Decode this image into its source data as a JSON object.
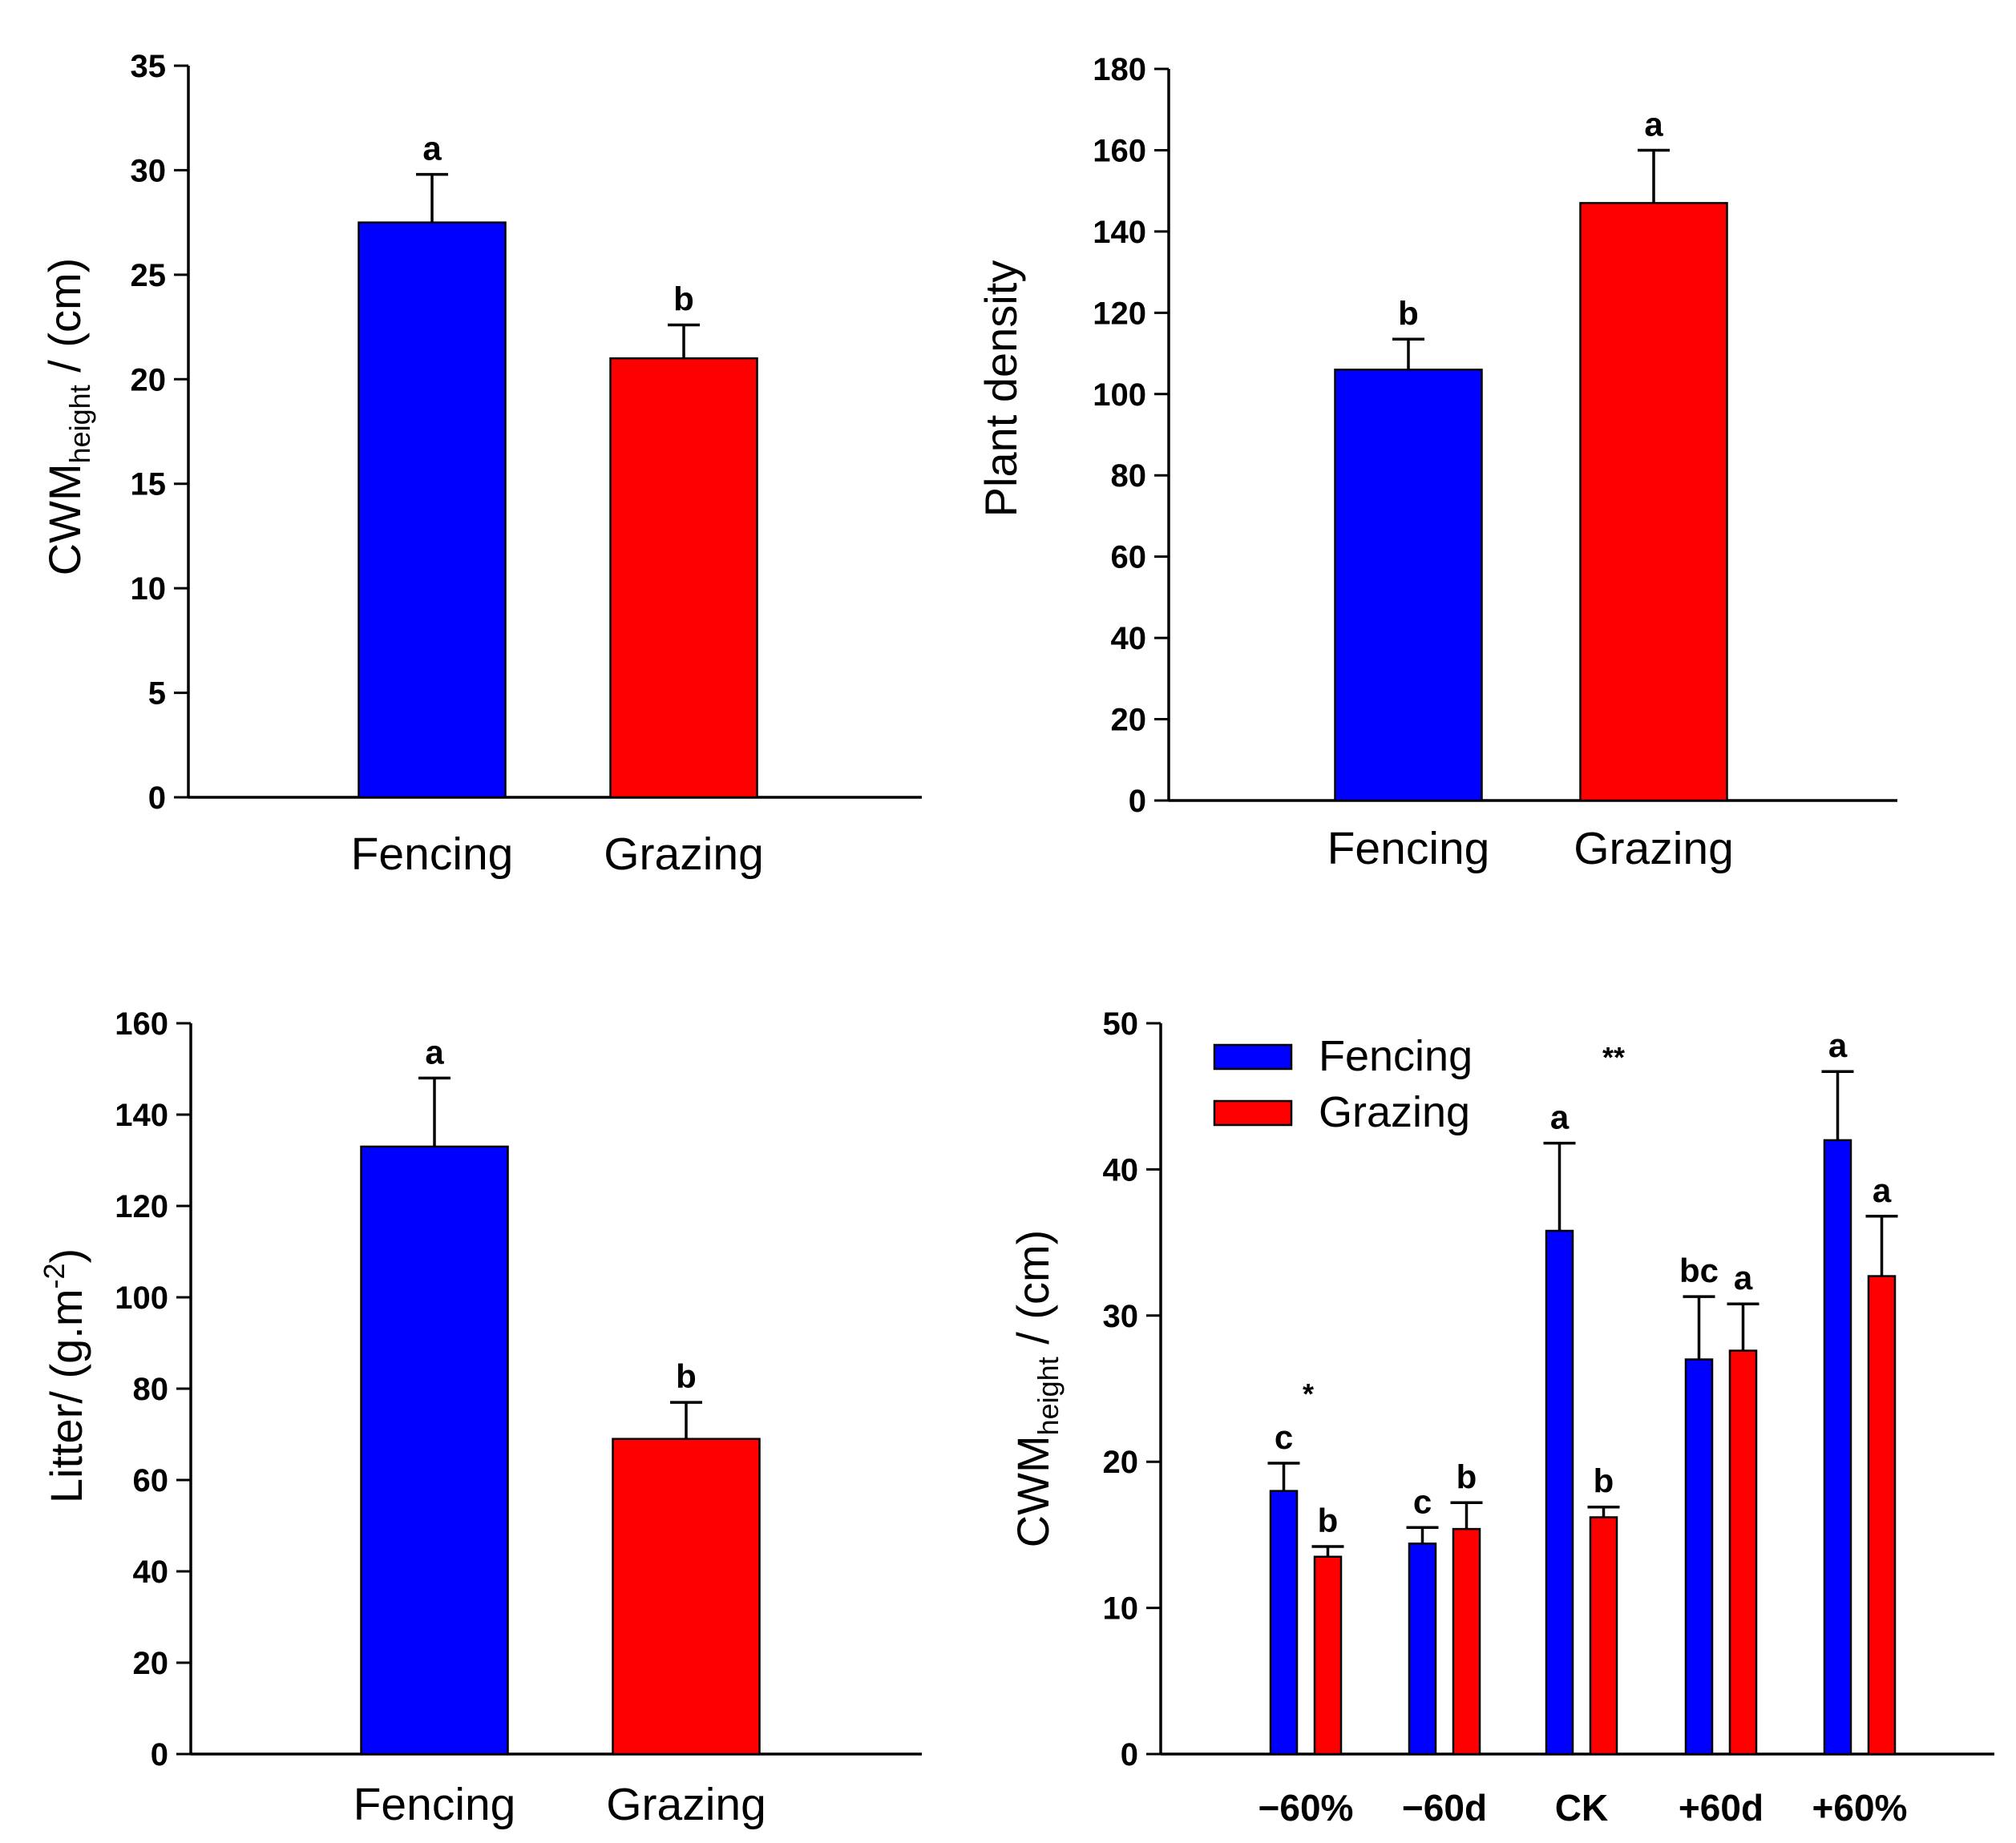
{
  "colors": {
    "fencing": "#0000ff",
    "grazing": "#ff0000",
    "axis": "#000000"
  },
  "chart_data": [
    {
      "type": "bar",
      "panel": "top-left",
      "categories": [
        "Fencing",
        "Grazing"
      ],
      "values": [
        27.5,
        21.0
      ],
      "errors": [
        2.3,
        1.6
      ],
      "letters": [
        "a",
        "b"
      ],
      "colors": [
        "#0000ff",
        "#ff0000"
      ],
      "ylabel": {
        "main": "CWM",
        "sub": "height",
        "tail": " / (cm)"
      },
      "ylim": [
        0,
        35
      ],
      "yticks": [
        0,
        5,
        10,
        15,
        20,
        25,
        30,
        35
      ]
    },
    {
      "type": "bar",
      "panel": "top-right",
      "categories": [
        "Fencing",
        "Grazing"
      ],
      "values": [
        106,
        147
      ],
      "errors": [
        7.5,
        13
      ],
      "letters": [
        "b",
        "a"
      ],
      "colors": [
        "#0000ff",
        "#ff0000"
      ],
      "ylabel": {
        "main": "Plant  density"
      },
      "ylim": [
        0,
        180
      ],
      "yticks": [
        0,
        20,
        40,
        60,
        80,
        100,
        120,
        140,
        160,
        180
      ]
    },
    {
      "type": "bar",
      "panel": "bottom-left",
      "categories": [
        "Fencing",
        "Grazing"
      ],
      "values": [
        133,
        69
      ],
      "errors": [
        15,
        8
      ],
      "letters": [
        "a",
        "b"
      ],
      "colors": [
        "#0000ff",
        "#ff0000"
      ],
      "ylabel": {
        "main": "Litter/ (g.m",
        "sup": "-2",
        "tail": ")"
      },
      "ylim": [
        0,
        160
      ],
      "yticks": [
        0,
        20,
        40,
        60,
        80,
        100,
        120,
        140,
        160
      ]
    },
    {
      "type": "bar",
      "panel": "bottom-right",
      "categories": [
        "−60%",
        "−60d",
        "CK",
        "+60d",
        "+60%"
      ],
      "series": [
        {
          "name": "Fencing",
          "color": "#0000ff",
          "values": [
            18.0,
            14.4,
            35.8,
            27.0,
            42.0
          ],
          "errors": [
            1.9,
            1.1,
            6.0,
            4.3,
            4.7
          ],
          "letters": [
            "c",
            "c",
            "a",
            "bc",
            "a"
          ]
        },
        {
          "name": "Grazing",
          "color": "#ff0000",
          "values": [
            13.5,
            15.4,
            16.2,
            27.6,
            32.7
          ],
          "errors": [
            0.7,
            1.8,
            0.7,
            3.2,
            4.1
          ],
          "letters": [
            "b",
            "b",
            "b",
            "a",
            "a"
          ]
        }
      ],
      "annotations": [
        {
          "text": "*",
          "category": "−60%"
        },
        {
          "text": "**",
          "category": "CK"
        }
      ],
      "legend": [
        "Fencing",
        "Grazing"
      ],
      "legend_position": "top-left",
      "ylabel": {
        "main": "CWM",
        "sub": "height",
        "tail": " / (cm)"
      },
      "ylim": [
        0,
        50
      ],
      "yticks": [
        0,
        10,
        20,
        30,
        40,
        50
      ]
    }
  ]
}
